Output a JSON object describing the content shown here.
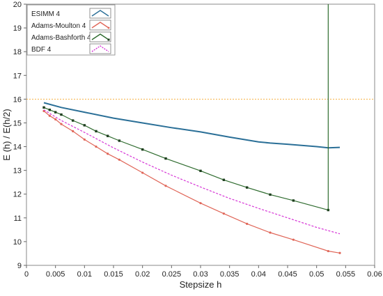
{
  "chart_data": {
    "type": "line",
    "title": "",
    "xlabel": "Stepsize h",
    "ylabel": "E (h) / E(h/2)",
    "xlim": [
      0,
      0.06
    ],
    "ylim": [
      9,
      20
    ],
    "xticks": [
      0,
      0.005,
      0.01,
      0.015,
      0.02,
      0.025,
      0.03,
      0.035,
      0.04,
      0.045,
      0.05,
      0.055,
      0.06
    ],
    "xtick_labels": [
      "0",
      "0.005",
      "0.01",
      "0.015",
      "0.02",
      "0.025",
      "0.03",
      "0.035",
      "0.04",
      "0.045",
      "0.05",
      "0.055",
      "0.06"
    ],
    "yticks": [
      9,
      10,
      11,
      12,
      13,
      14,
      15,
      16,
      17,
      18,
      19,
      20
    ],
    "ytick_labels": [
      "9",
      "10",
      "11",
      "12",
      "13",
      "14",
      "15",
      "16",
      "17",
      "18",
      "19",
      "20"
    ],
    "grid": false,
    "legend_position": "top-left",
    "reference_line": {
      "y": 16,
      "color": "#f5b041",
      "style": "dotted"
    },
    "series": [
      {
        "name": "ESIMM 4",
        "color": "#2a6f97",
        "style": "solid",
        "marker": "none",
        "x": [
          0.003,
          0.006,
          0.01,
          0.015,
          0.02,
          0.025,
          0.03,
          0.035,
          0.04,
          0.042,
          0.045,
          0.05,
          0.052,
          0.054
        ],
        "y": [
          15.85,
          15.65,
          15.45,
          15.2,
          15.0,
          14.8,
          14.62,
          14.4,
          14.2,
          14.15,
          14.1,
          14.0,
          13.95,
          13.97
        ]
      },
      {
        "name": "Adams-Moulton 4",
        "color": "#e06658",
        "style": "solid",
        "marker": "dot",
        "x": [
          0.003,
          0.004,
          0.005,
          0.006,
          0.008,
          0.01,
          0.012,
          0.014,
          0.016,
          0.02,
          0.024,
          0.03,
          0.034,
          0.038,
          0.042,
          0.046,
          0.052,
          0.054
        ],
        "y": [
          15.5,
          15.3,
          15.15,
          14.95,
          14.65,
          14.3,
          14.0,
          13.7,
          13.45,
          12.9,
          12.35,
          11.62,
          11.18,
          10.75,
          10.38,
          10.08,
          9.6,
          9.52
        ]
      },
      {
        "name": "Adams-Bashforth 4",
        "color": "#2e6b2e",
        "style": "solid",
        "marker": "square",
        "x": [
          0.003,
          0.004,
          0.005,
          0.006,
          0.008,
          0.01,
          0.012,
          0.014,
          0.016,
          0.02,
          0.024,
          0.03,
          0.034,
          0.038,
          0.042,
          0.046,
          0.052
        ],
        "y": [
          15.65,
          15.55,
          15.45,
          15.35,
          15.1,
          14.9,
          14.65,
          14.45,
          14.25,
          13.88,
          13.5,
          12.98,
          12.6,
          12.28,
          11.98,
          11.73,
          11.33
        ]
      },
      {
        "name": "BDF 4",
        "color": "#d633d6",
        "style": "dashed",
        "marker": "none",
        "x": [
          0.003,
          0.006,
          0.01,
          0.015,
          0.02,
          0.025,
          0.03,
          0.035,
          0.04,
          0.045,
          0.05,
          0.054
        ],
        "y": [
          15.55,
          15.1,
          14.6,
          13.95,
          13.35,
          12.8,
          12.3,
          11.82,
          11.4,
          11.0,
          10.6,
          10.33
        ]
      }
    ]
  }
}
